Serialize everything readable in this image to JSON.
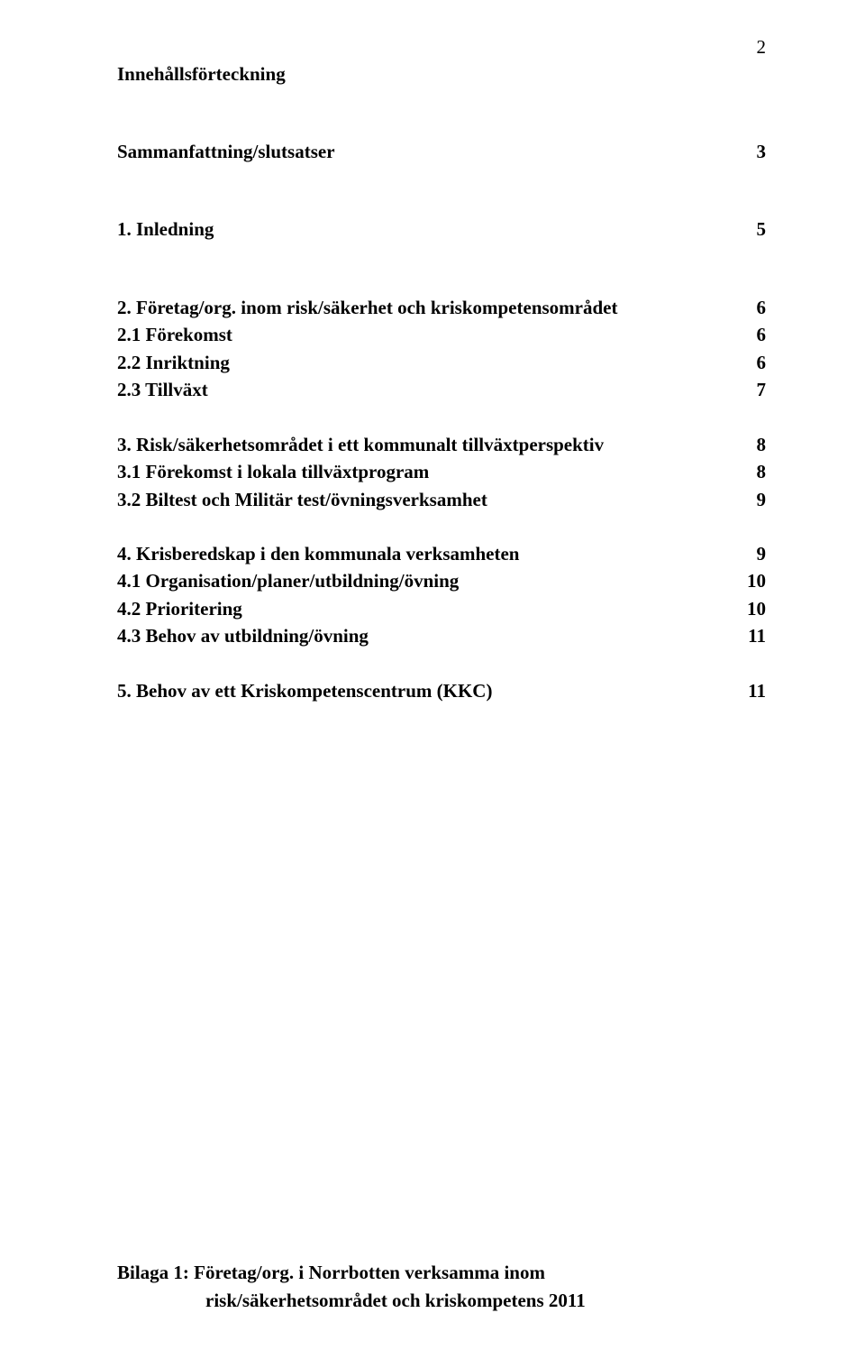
{
  "page_number": "2",
  "title": "Innehållsförteckning",
  "toc": [
    {
      "label": "Sammanfattning/slutsatser",
      "page": "3",
      "gap": "gap-large"
    },
    {
      "label": "1. Inledning",
      "page": "5",
      "gap": "gap-large"
    },
    {
      "label": "2. Företag/org. inom risk/säkerhet och kriskompetensområdet",
      "page": "6",
      "gap": "gap-small"
    },
    {
      "label": "2.1 Förekomst",
      "page": "6",
      "gap": "gap-small"
    },
    {
      "label": "2.2 Inriktning",
      "page": "6",
      "gap": "gap-small"
    },
    {
      "label": "2.3 Tillväxt",
      "page": "7",
      "gap": "gap-med"
    },
    {
      "label": "3. Risk/säkerhetsområdet i ett kommunalt tillväxtperspektiv",
      "page": "8",
      "gap": "gap-small"
    },
    {
      "label": "3.1 Förekomst i lokala tillväxtprogram",
      "page": "8",
      "gap": "gap-small"
    },
    {
      "label": "3.2 Biltest och Militär test/övningsverksamhet",
      "page": "9",
      "gap": "gap-med"
    },
    {
      "label": "4. Krisberedskap i den kommunala verksamheten",
      "page": "9",
      "gap": "gap-small"
    },
    {
      "label": "4.1 Organisation/planer/utbildning/övning",
      "page": "10",
      "gap": "gap-small"
    },
    {
      "label": "4.2 Prioritering",
      "page": "10",
      "gap": "gap-small"
    },
    {
      "label": "4.3 Behov av utbildning/övning",
      "page": "11",
      "gap": "gap-med"
    },
    {
      "label": "5. Behov av ett Kriskompetenscentrum (KKC)",
      "page": "11",
      "gap": "gap-small"
    }
  ],
  "appendix": {
    "line1": "Bilaga 1: Företag/org. i Norrbotten verksamma inom",
    "line2": "risk/säkerhetsområdet och kriskompetens 2011"
  }
}
